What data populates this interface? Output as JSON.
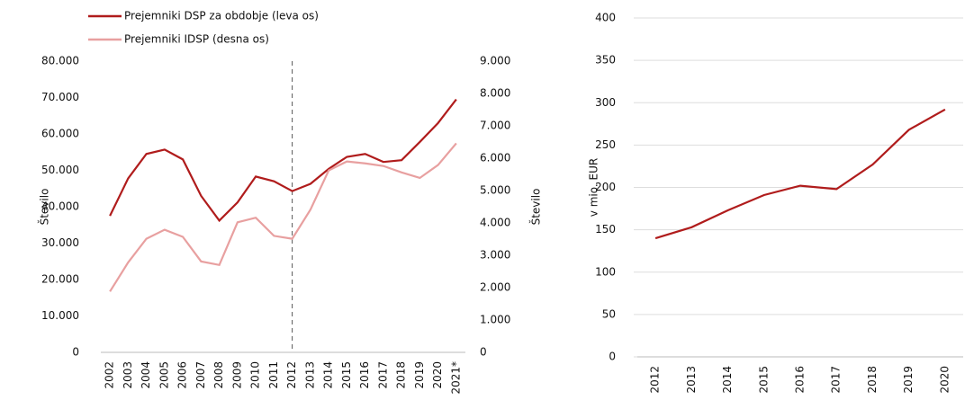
{
  "chart_data": [
    {
      "type": "line",
      "categories": [
        "2002",
        "2003",
        "2004",
        "2005",
        "2006",
        "2007",
        "2008",
        "2009",
        "2010",
        "2011",
        "2012",
        "2013",
        "2014",
        "2015",
        "2016",
        "2017",
        "2018",
        "2019",
        "2020",
        "2021*"
      ],
      "series": [
        {
          "name": "Prejemniki DSP za obdobje (leva os)",
          "color": "#b01c1c",
          "values": [
            37500,
            47800,
            54500,
            55700,
            53000,
            43000,
            36200,
            41200,
            48300,
            47000,
            44300,
            46300,
            50400,
            53700,
            54500,
            52300,
            52800,
            57800,
            63000,
            69500
          ]
        },
        {
          "name": "Prejemniki IDSP (desna os)",
          "color": "#e8a0a0",
          "axis": "y2",
          "values": [
            1880,
            2780,
            3510,
            3790,
            3570,
            2810,
            2700,
            4020,
            4160,
            3600,
            3510,
            4410,
            5620,
            5900,
            5840,
            5760,
            5560,
            5390,
            5790,
            6460
          ]
        }
      ],
      "ylabel": "Število",
      "y2label": "Število",
      "ylim": [
        0,
        80000
      ],
      "yticks": [
        {
          "value": 0,
          "label": "0"
        },
        {
          "value": 10000,
          "label": "10.000"
        },
        {
          "value": 20000,
          "label": "20.000"
        },
        {
          "value": 30000,
          "label": "30.000"
        },
        {
          "value": 40000,
          "label": "40.000"
        },
        {
          "value": 50000,
          "label": "50.000"
        },
        {
          "value": 60000,
          "label": "60.000"
        },
        {
          "value": 70000,
          "label": "70.000"
        },
        {
          "value": 80000,
          "label": "80.000"
        }
      ],
      "y2lim": [
        0,
        9000
      ],
      "y2ticks": [
        {
          "value": 0,
          "label": "0"
        },
        {
          "value": 1000,
          "label": "1.000"
        },
        {
          "value": 2000,
          "label": "2.000"
        },
        {
          "value": 3000,
          "label": "3.000"
        },
        {
          "value": 4000,
          "label": "4.000"
        },
        {
          "value": 5000,
          "label": "5.000"
        },
        {
          "value": 6000,
          "label": "6.000"
        },
        {
          "value": 7000,
          "label": "7.000"
        },
        {
          "value": 8000,
          "label": "8.000"
        },
        {
          "value": 9000,
          "label": "9.000"
        }
      ],
      "vline": "2012",
      "grid": false
    },
    {
      "type": "line",
      "categories": [
        "2012",
        "2013",
        "2014",
        "2015",
        "2016",
        "2017",
        "2018",
        "2019",
        "2020"
      ],
      "series": [
        {
          "color": "#b01c1c",
          "values": [
            140,
            153,
            173,
            191,
            202,
            198,
            227,
            268,
            292
          ]
        }
      ],
      "ylabel": "v mio. EUR",
      "ylim": [
        0,
        400
      ],
      "yticks": [
        0,
        50,
        100,
        150,
        200,
        250,
        300,
        350,
        400
      ],
      "grid": true
    }
  ]
}
